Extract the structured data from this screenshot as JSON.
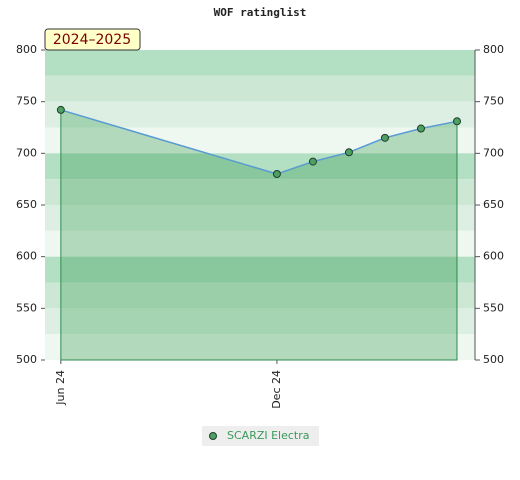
{
  "chart_data": {
    "type": "line",
    "title": "WOF ratinglist",
    "season": "2024–2025",
    "x": [
      0,
      6,
      7,
      8,
      9,
      10,
      11
    ],
    "xlim": [
      -0.44,
      11.5
    ],
    "xticks": [
      {
        "value": 0,
        "label": "Jun 24"
      },
      {
        "value": 6,
        "label": "Dec 24"
      }
    ],
    "series": [
      {
        "name": "SCARZI Electra",
        "color": "#5a9bd5",
        "values": [
          742,
          680,
          692,
          701,
          715,
          724,
          731
        ]
      }
    ],
    "ylim": [
      500,
      800
    ],
    "yticks": [
      500,
      550,
      600,
      650,
      700,
      750,
      800
    ],
    "y2lim": [
      500,
      800
    ],
    "y2ticks": [
      500,
      550,
      600,
      650,
      700,
      750,
      800
    ]
  }
}
